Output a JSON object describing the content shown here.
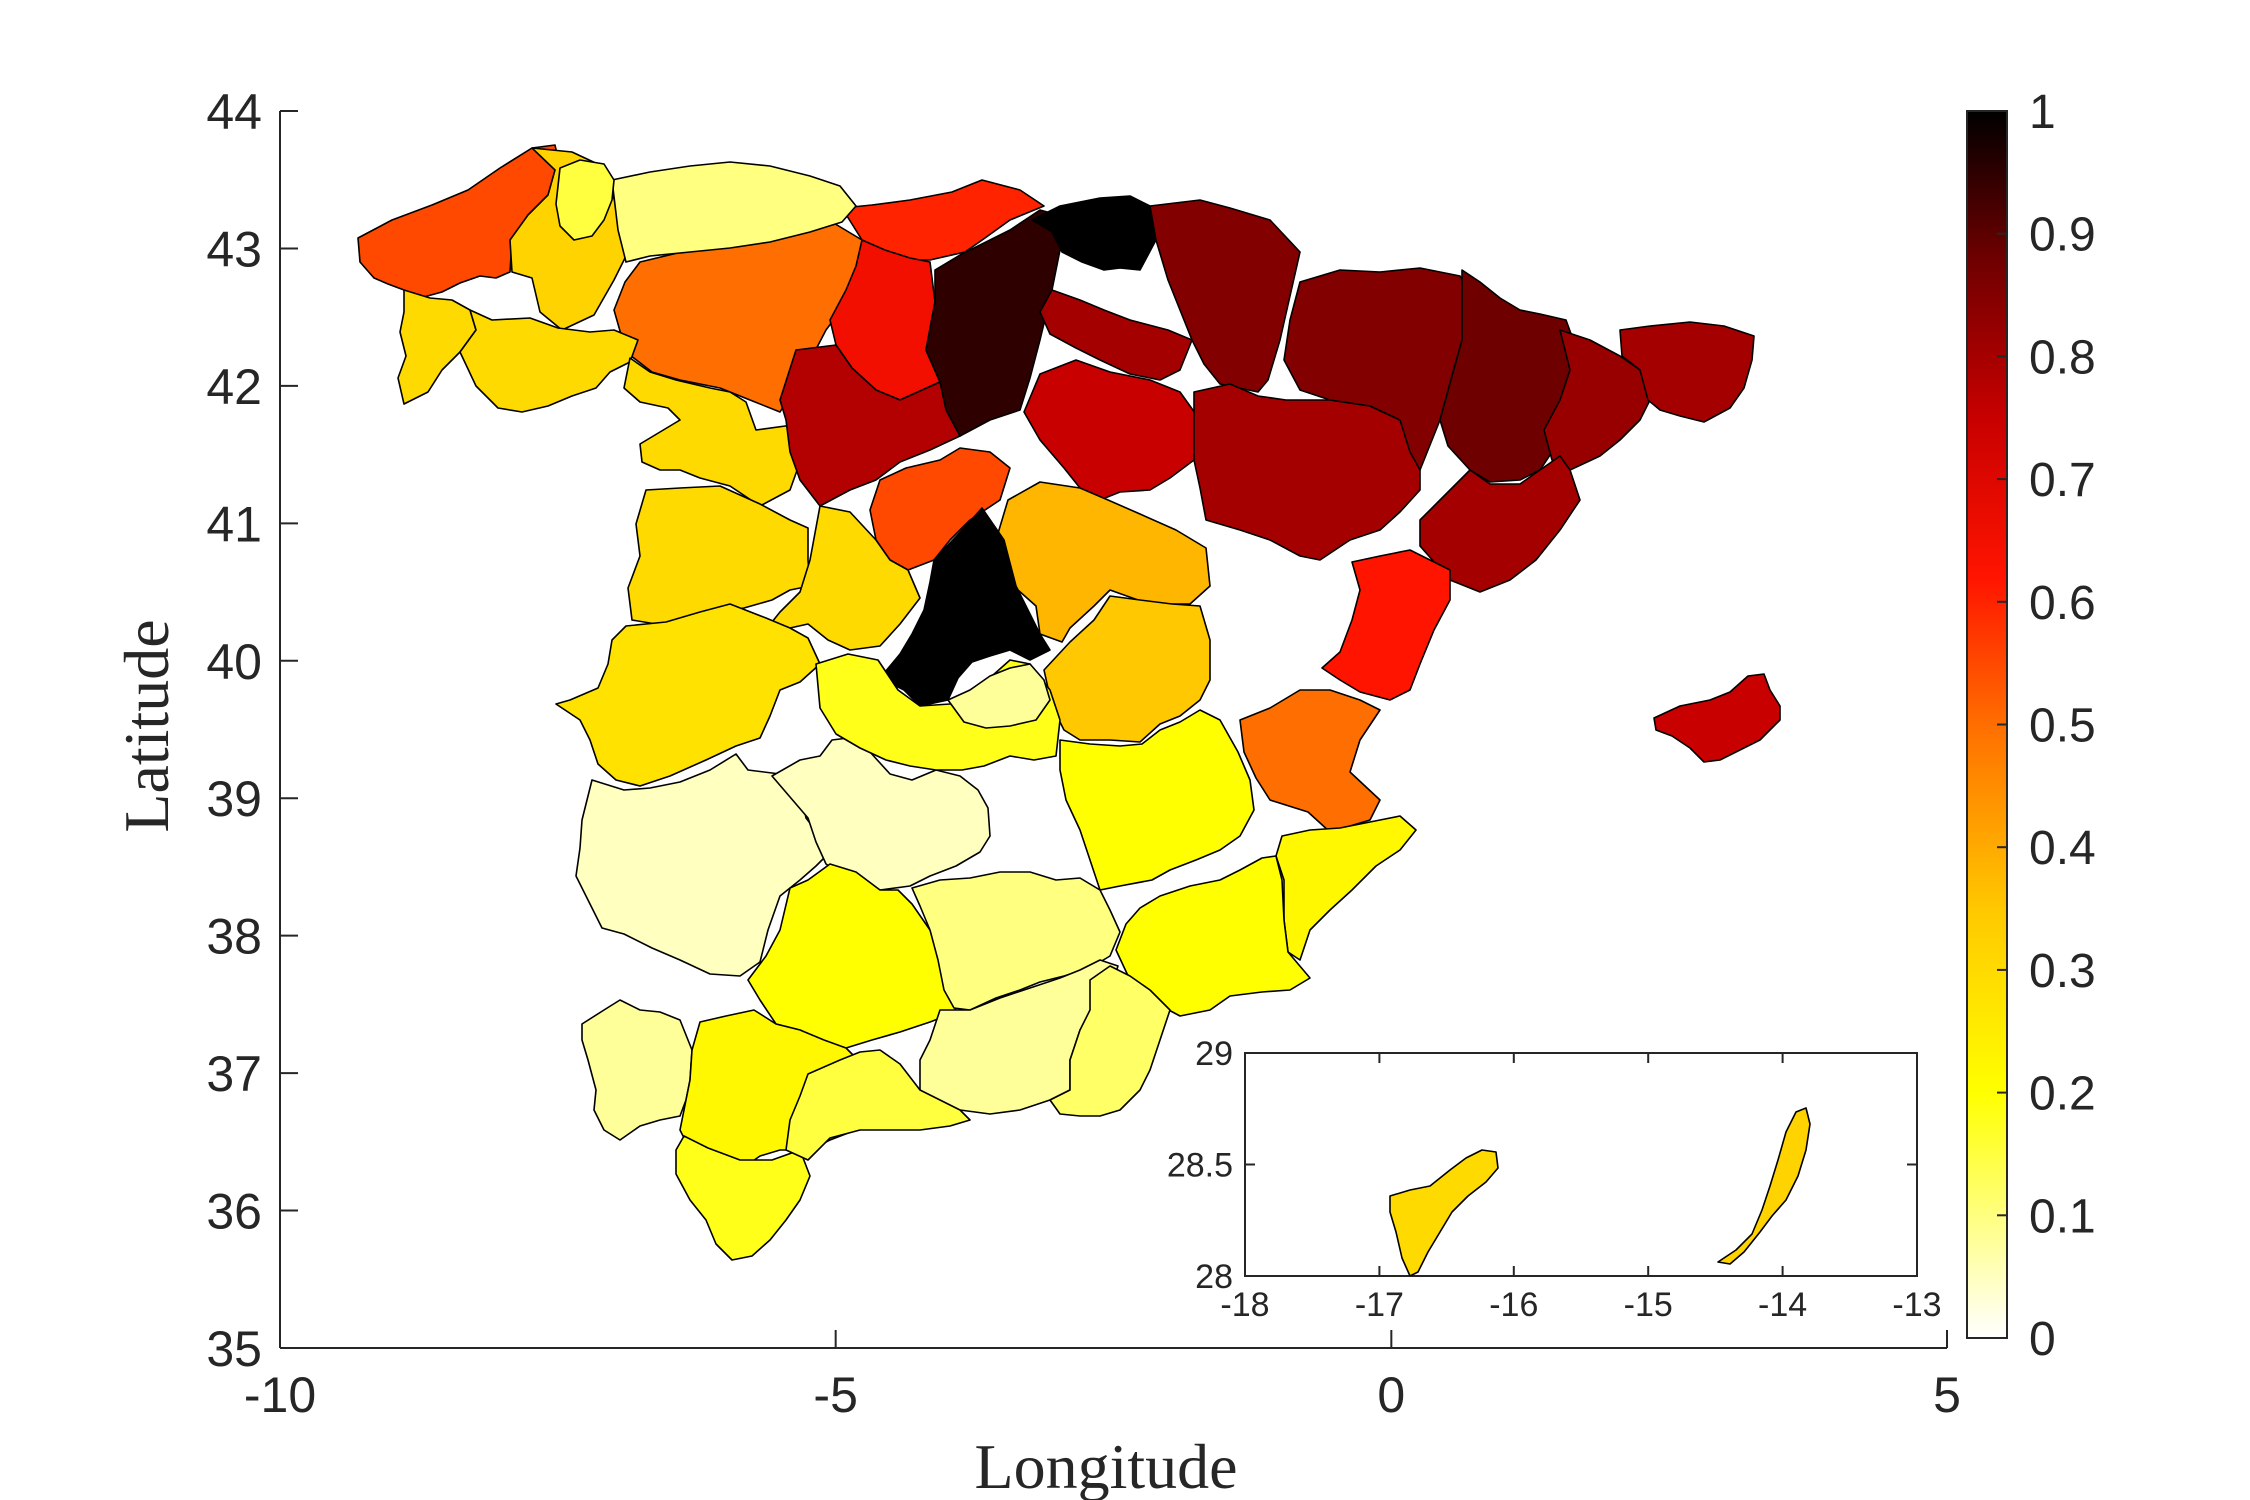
{
  "chart_data": {
    "type": "choropleth_map",
    "xlabel": "Longitude",
    "ylabel": "Latitude",
    "xlim": [
      -10,
      5
    ],
    "ylim": [
      35,
      44
    ],
    "xticks": [
      "-10",
      "-5",
      "0",
      "5"
    ],
    "yticks": [
      "35",
      "36",
      "37",
      "38",
      "39",
      "40",
      "41",
      "42",
      "43",
      "44"
    ],
    "colorbar": {
      "colormap": "hot (reversed)",
      "range": [
        0,
        1
      ],
      "ticks": [
        "0",
        "0.1",
        "0.2",
        "0.3",
        "0.4",
        "0.5",
        "0.6",
        "0.7",
        "0.8",
        "0.9",
        "1"
      ]
    },
    "inset": {
      "xlim": [
        -18,
        -13
      ],
      "ylim": [
        28,
        29
      ],
      "xticks": [
        "-18",
        "-17",
        "-16",
        "-15",
        "-14",
        "-13"
      ],
      "yticks": [
        "28",
        "28.5",
        "29"
      ]
    },
    "regions": [
      {
        "value": 0.55
      },
      {
        "value": 0.32
      },
      {
        "value": 0.5
      },
      {
        "value": 0.6
      },
      {
        "value": 0.3
      },
      {
        "value": 0.3
      },
      {
        "value": 0.3
      },
      {
        "value": 0.65
      },
      {
        "value": 0.95
      },
      {
        "value": 1.0
      },
      {
        "value": 0.85
      },
      {
        "value": 0.8
      },
      {
        "value": 0.78
      },
      {
        "value": 0.75
      },
      {
        "value": 0.55
      },
      {
        "value": 0.3
      },
      {
        "value": 0.3
      },
      {
        "value": 0.38
      },
      {
        "value": 0.28
      },
      {
        "value": 1.0
      },
      {
        "value": 0.35
      },
      {
        "value": 0.8
      },
      {
        "value": 0.85
      },
      {
        "value": 0.88
      },
      {
        "value": 0.82
      },
      {
        "value": 0.8
      },
      {
        "value": 0.8
      },
      {
        "value": 0.62
      },
      {
        "value": 0.5
      },
      {
        "value": 0.05
      },
      {
        "value": 0.05
      },
      {
        "value": 0.18
      },
      {
        "value": 0.2
      },
      {
        "value": 0.22
      },
      {
        "value": 0.2
      },
      {
        "value": 0.2
      },
      {
        "value": 0.1
      },
      {
        "value": 0.08
      },
      {
        "value": 0.08
      },
      {
        "value": 0.22
      },
      {
        "value": 0.18
      },
      {
        "value": 0.15
      },
      {
        "value": 0.12
      },
      {
        "value": 0.1
      },
      {
        "value": 0.08
      },
      {
        "value": 0.15
      },
      {
        "value": 0.75
      },
      {
        "value": 0.3
      },
      {
        "value": 0.32
      }
    ]
  }
}
